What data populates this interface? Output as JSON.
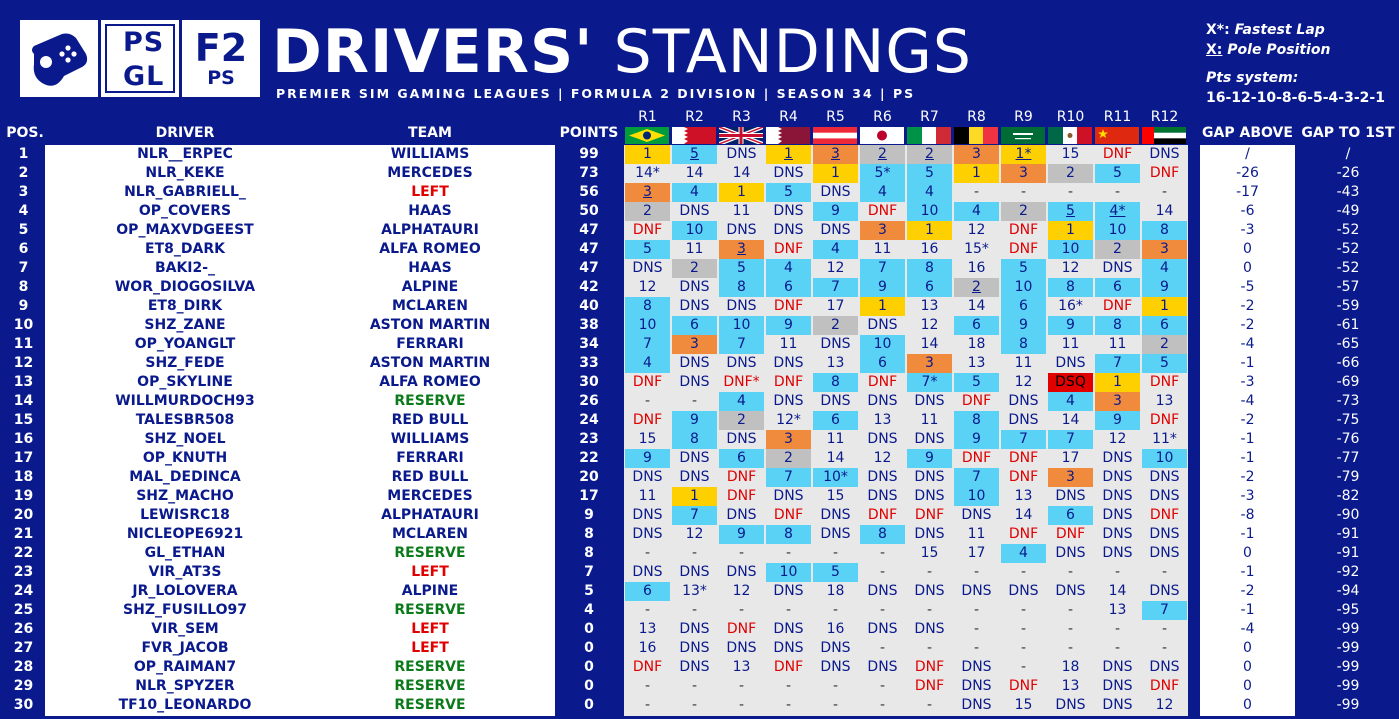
{
  "title_bold": "DRIVERS'",
  "title_light": "STANDINGS",
  "subtitle": "PREMIER SIM GAMING LEAGUES | FORMULA 2 DIVISION | SEASON 34 | PS",
  "logos": {
    "psgl": [
      "PS",
      "GL"
    ],
    "f2_big": "F2",
    "f2_small": "PS",
    "pad_icon": "gamepad-icon"
  },
  "legend": {
    "fastest_key": "X*:",
    "fastest_label": "Fastest Lap",
    "pole_key": "X:",
    "pole_label": "Pole Position",
    "pts_title": "Pts system:",
    "pts_value": "16-12-10-8-6-5-4-3-2-1"
  },
  "headers": {
    "pos": "POS.",
    "driver": "DRIVER",
    "team": "TEAM",
    "points": "POINTS",
    "gap_above": "GAP ABOVE",
    "gap_first": "GAP TO 1ST"
  },
  "rounds": [
    "R1",
    "R2",
    "R3",
    "R4",
    "R5",
    "R6",
    "R7",
    "R8",
    "R9",
    "R10",
    "R11",
    "R12"
  ],
  "round_flags": [
    "brazil-flag",
    "bahrain-flag",
    "uk-flag",
    "qatar-flag",
    "austria-flag",
    "japan-flag",
    "italy-flag",
    "belgium-flag",
    "saudi-arabia-flag",
    "mexico-flag",
    "china-flag",
    "uae-flag"
  ],
  "colors": {
    "background": "#0a1a8c",
    "gold": "#ffd000",
    "silver": "#c0c0c0",
    "bronze": "#f08a3c",
    "points": "#59d2f5",
    "dnf": "#e00000",
    "reserve": "#0a7a1a"
  },
  "rows": [
    {
      "pos": "1",
      "driver": "NLR__ERPEC",
      "team": "WILLIAMS",
      "points": "99",
      "gap_above": "/",
      "gap_first": "/",
      "results": [
        "1",
        "5",
        "DNS",
        "1",
        "3",
        "2",
        "2",
        "3",
        "1*",
        "15",
        "DNF",
        "DNS"
      ]
    },
    {
      "pos": "2",
      "driver": "NLR_KEKE",
      "team": "MERCEDES",
      "points": "73",
      "gap_above": "-26",
      "gap_first": "-26",
      "results": [
        "14*",
        "14",
        "14",
        "DNS",
        "1",
        "5*",
        "5",
        "1",
        "3",
        "2",
        "5",
        "DNF"
      ]
    },
    {
      "pos": "3",
      "driver": "NLR_GABRIELL_",
      "team": "LEFT",
      "points": "56",
      "gap_above": "-17",
      "gap_first": "-43",
      "results": [
        "3",
        "4",
        "1",
        "5",
        "DNS",
        "4",
        "4",
        "-",
        "-",
        "-",
        "-",
        "-"
      ]
    },
    {
      "pos": "4",
      "driver": "OP_COVERS",
      "team": "HAAS",
      "points": "50",
      "gap_above": "-6",
      "gap_first": "-49",
      "results": [
        "2",
        "DNS",
        "11",
        "DNS",
        "9",
        "DNF",
        "10",
        "4",
        "2",
        "5",
        "4*",
        "14"
      ]
    },
    {
      "pos": "5",
      "driver": "OP_MAXVDGEEST",
      "team": "ALPHATAURI",
      "points": "47",
      "gap_above": "-3",
      "gap_first": "-52",
      "results": [
        "DNF",
        "10",
        "DNS",
        "DNS",
        "DNS",
        "3",
        "1",
        "12",
        "DNF",
        "1",
        "10",
        "8"
      ]
    },
    {
      "pos": "6",
      "driver": "ET8_DARK",
      "team": "ALFA ROMEO",
      "points": "47",
      "gap_above": "0",
      "gap_first": "-52",
      "results": [
        "5",
        "11",
        "3",
        "DNF",
        "4",
        "11",
        "16",
        "15*",
        "DNF",
        "10",
        "2",
        "3"
      ]
    },
    {
      "pos": "7",
      "driver": "BAKI2-_",
      "team": "HAAS",
      "points": "47",
      "gap_above": "0",
      "gap_first": "-52",
      "results": [
        "DNS",
        "2",
        "5",
        "4",
        "12",
        "7",
        "8",
        "16",
        "5",
        "12",
        "DNS",
        "4"
      ]
    },
    {
      "pos": "8",
      "driver": "WOR_DIOGOSILVA",
      "team": "ALPINE",
      "points": "42",
      "gap_above": "-5",
      "gap_first": "-57",
      "results": [
        "12",
        "DNS",
        "8",
        "6",
        "7",
        "9",
        "6",
        "2",
        "10",
        "8",
        "6",
        "9"
      ]
    },
    {
      "pos": "9",
      "driver": "ET8_DIRK",
      "team": "MCLAREN",
      "points": "40",
      "gap_above": "-2",
      "gap_first": "-59",
      "results": [
        "8",
        "DNS",
        "DNS",
        "DNF",
        "17",
        "1",
        "13",
        "14",
        "6",
        "16*",
        "DNF",
        "1"
      ]
    },
    {
      "pos": "10",
      "driver": "SHZ_ZANE",
      "team": "ASTON MARTIN",
      "points": "38",
      "gap_above": "-2",
      "gap_first": "-61",
      "results": [
        "10",
        "6",
        "10",
        "9",
        "2",
        "DNS",
        "12",
        "6",
        "9",
        "9",
        "8",
        "6"
      ]
    },
    {
      "pos": "11",
      "driver": "OP_YOANGLT",
      "team": "FERRARI",
      "points": "34",
      "gap_above": "-4",
      "gap_first": "-65",
      "results": [
        "7",
        "3",
        "7",
        "11",
        "DNS",
        "10",
        "14",
        "18",
        "8",
        "11",
        "11",
        "2"
      ]
    },
    {
      "pos": "12",
      "driver": "SHZ_FEDE",
      "team": "ASTON MARTIN",
      "points": "33",
      "gap_above": "-1",
      "gap_first": "-66",
      "results": [
        "4",
        "DNS",
        "DNS",
        "DNS",
        "13",
        "6",
        "3",
        "13",
        "11",
        "DNS",
        "7",
        "5"
      ]
    },
    {
      "pos": "13",
      "driver": "OP_SKYLINE",
      "team": "ALFA ROMEO",
      "points": "30",
      "gap_above": "-3",
      "gap_first": "-69",
      "results": [
        "DNF",
        "DNS",
        "DNF*",
        "DNF",
        "8",
        "DNF",
        "7*",
        "5",
        "12",
        "DSQ",
        "1",
        "DNF"
      ]
    },
    {
      "pos": "14",
      "driver": "WILLMURDOCH93",
      "team": "RESERVE",
      "points": "26",
      "gap_above": "-4",
      "gap_first": "-73",
      "results": [
        "-",
        "-",
        "4",
        "DNS",
        "DNS",
        "DNS",
        "DNS",
        "DNF",
        "DNS",
        "4",
        "3",
        "13"
      ]
    },
    {
      "pos": "15",
      "driver": "TALESBR508",
      "team": "RED BULL",
      "points": "24",
      "gap_above": "-2",
      "gap_first": "-75",
      "results": [
        "DNF",
        "9",
        "2",
        "12*",
        "6",
        "13",
        "11",
        "8",
        "DNS",
        "14",
        "9",
        "DNF"
      ]
    },
    {
      "pos": "16",
      "driver": "SHZ_NOEL",
      "team": "WILLIAMS",
      "points": "23",
      "gap_above": "-1",
      "gap_first": "-76",
      "results": [
        "15",
        "8",
        "DNS",
        "3",
        "11",
        "DNS",
        "DNS",
        "9",
        "7",
        "7",
        "12",
        "11*"
      ]
    },
    {
      "pos": "17",
      "driver": "OP_KNUTH",
      "team": "FERRARI",
      "points": "22",
      "gap_above": "-1",
      "gap_first": "-77",
      "results": [
        "9",
        "DNS",
        "6",
        "2",
        "14",
        "12",
        "9",
        "DNF",
        "DNF",
        "17",
        "DNS",
        "10"
      ]
    },
    {
      "pos": "18",
      "driver": "MAL_DEDINCA",
      "team": "RED BULL",
      "points": "20",
      "gap_above": "-2",
      "gap_first": "-79",
      "results": [
        "DNS",
        "DNS",
        "DNF",
        "7",
        "10*",
        "DNS",
        "DNS",
        "7",
        "DNF",
        "3",
        "DNS",
        "DNS"
      ]
    },
    {
      "pos": "19",
      "driver": "SHZ_MACHO",
      "team": "MERCEDES",
      "points": "17",
      "gap_above": "-3",
      "gap_first": "-82",
      "results": [
        "11",
        "1",
        "DNF",
        "DNS",
        "15",
        "DNS",
        "DNS",
        "10",
        "13",
        "DNS",
        "DNS",
        "DNS"
      ]
    },
    {
      "pos": "20",
      "driver": "LEWISRC18",
      "team": "ALPHATAURI",
      "points": "9",
      "gap_above": "-8",
      "gap_first": "-90",
      "results": [
        "DNS",
        "7",
        "DNS",
        "DNF",
        "DNS",
        "DNF",
        "DNF",
        "DNS",
        "14",
        "6",
        "DNS",
        "DNF"
      ]
    },
    {
      "pos": "21",
      "driver": "NICLEOPE6921",
      "team": "MCLAREN",
      "points": "8",
      "gap_above": "-1",
      "gap_first": "-91",
      "results": [
        "DNS",
        "12",
        "9",
        "8",
        "DNS",
        "8",
        "DNS",
        "11",
        "DNF",
        "DNF",
        "DNS",
        "DNS"
      ]
    },
    {
      "pos": "22",
      "driver": "GL_ETHAN",
      "team": "RESERVE",
      "points": "8",
      "gap_above": "0",
      "gap_first": "-91",
      "results": [
        "-",
        "-",
        "-",
        "-",
        "-",
        "-",
        "15",
        "17",
        "4",
        "DNS",
        "DNS",
        "DNS"
      ]
    },
    {
      "pos": "23",
      "driver": "VIR_AT3S",
      "team": "LEFT",
      "points": "7",
      "gap_above": "-1",
      "gap_first": "-92",
      "results": [
        "DNS",
        "DNS",
        "DNS",
        "10",
        "5",
        "-",
        "-",
        "-",
        "-",
        "-",
        "-",
        "-"
      ]
    },
    {
      "pos": "24",
      "driver": "JR_LOLOVERA",
      "team": "ALPINE",
      "points": "5",
      "gap_above": "-2",
      "gap_first": "-94",
      "results": [
        "6",
        "13*",
        "12",
        "DNS",
        "18",
        "DNS",
        "DNS",
        "DNS",
        "DNS",
        "DNS",
        "14",
        "DNS"
      ]
    },
    {
      "pos": "25",
      "driver": "SHZ_FUSILLO97",
      "team": "RESERVE",
      "points": "4",
      "gap_above": "-1",
      "gap_first": "-95",
      "results": [
        "-",
        "-",
        "-",
        "-",
        "-",
        "-",
        "-",
        "-",
        "-",
        "-",
        "13",
        "7"
      ]
    },
    {
      "pos": "26",
      "driver": "VIR_SEM",
      "team": "LEFT",
      "points": "0",
      "gap_above": "-4",
      "gap_first": "-99",
      "results": [
        "13",
        "DNS",
        "DNF",
        "DNS",
        "16",
        "DNS",
        "DNS",
        "-",
        "-",
        "-",
        "-",
        "-"
      ]
    },
    {
      "pos": "27",
      "driver": "FVR_JACOB",
      "team": "LEFT",
      "points": "0",
      "gap_above": "0",
      "gap_first": "-99",
      "results": [
        "16",
        "DNS",
        "DNS",
        "DNS",
        "DNS",
        "-",
        "-",
        "-",
        "-",
        "-",
        "-",
        "-"
      ]
    },
    {
      "pos": "28",
      "driver": "OP_RAIMAN7",
      "team": "RESERVE",
      "points": "0",
      "gap_above": "0",
      "gap_first": "-99",
      "results": [
        "DNF",
        "DNS",
        "13",
        "DNF",
        "DNS",
        "DNS",
        "DNF",
        "DNS",
        "-",
        "18",
        "DNS",
        "DNS"
      ]
    },
    {
      "pos": "29",
      "driver": "NLR_SPYZER",
      "team": "RESERVE",
      "points": "0",
      "gap_above": "0",
      "gap_first": "-99",
      "results": [
        "-",
        "-",
        "-",
        "-",
        "-",
        "-",
        "DNF",
        "DNS",
        "DNF",
        "13",
        "DNS",
        "DNF"
      ]
    },
    {
      "pos": "30",
      "driver": "TF10_LEONARDO",
      "team": "RESERVE",
      "points": "0",
      "gap_above": "0",
      "gap_first": "-99",
      "results": [
        "-",
        "-",
        "-",
        "-",
        "-",
        "-",
        "-",
        "DNS",
        "15",
        "DNS",
        "DNS",
        "12"
      ]
    }
  ],
  "pole_positions": [
    [
      0,
      1
    ],
    [
      0,
      3
    ],
    [
      0,
      4
    ],
    [
      0,
      5
    ],
    [
      0,
      6
    ],
    [
      0,
      8
    ],
    [
      2,
      0
    ],
    [
      3,
      9
    ],
    [
      3,
      10
    ],
    [
      5,
      2
    ],
    [
      7,
      7
    ]
  ]
}
